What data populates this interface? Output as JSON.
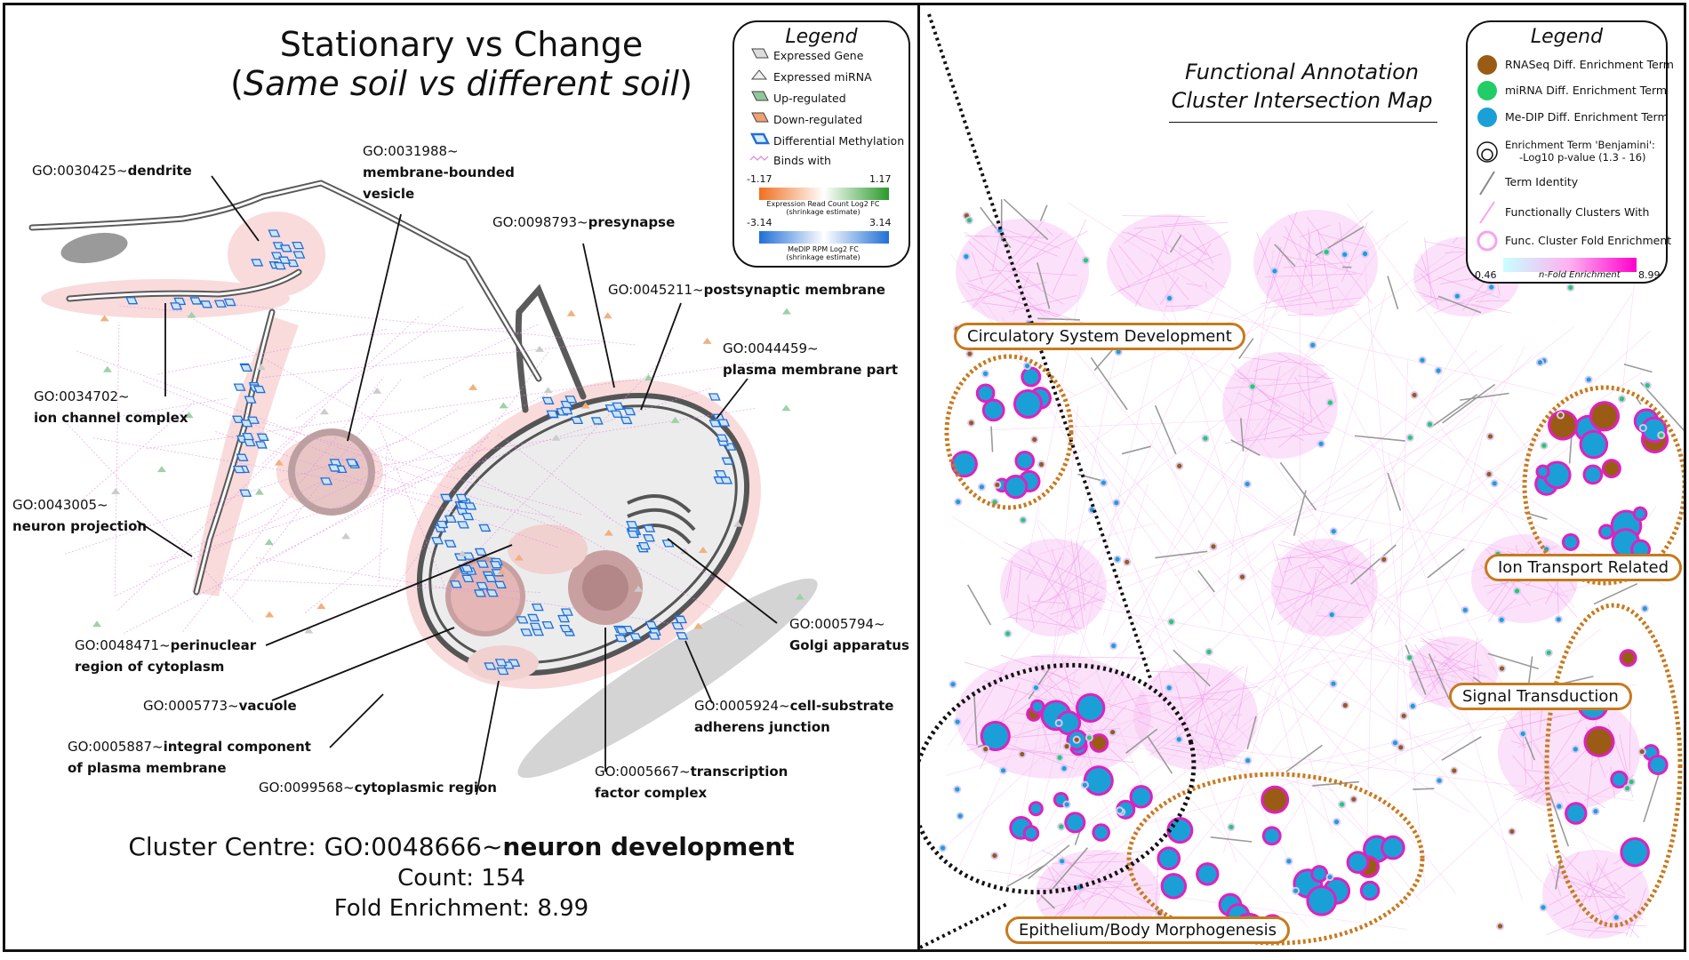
{
  "left": {
    "title_line1": "Stationary vs Change",
    "title_paren_open": "(",
    "title_line2_italic": "Same soil vs different soil",
    "title_paren_close": ")",
    "legend": {
      "title": "Legend",
      "items": [
        "Expressed Gene",
        "Expressed miRNA",
        "Up-regulated",
        "Down-regulated",
        "Differential Methylation",
        "Binds with"
      ],
      "scale1": {
        "min": "-1.17",
        "max": "1.17",
        "caption1": "Expression Read Count Log2 FC",
        "caption2": "(shrinkage estimate)",
        "colors": [
          "#f07020",
          "#ffffff",
          "#2a9a2a"
        ]
      },
      "scale2": {
        "min": "-3.14",
        "max": "3.14",
        "caption1": "MeDIP RPM Log2 FC",
        "caption2": "(shrinkage estimate)",
        "colors": [
          "#1f6fd6",
          "#ffffff",
          "#1f6fd6"
        ]
      }
    },
    "go_labels": [
      {
        "id": "GO:0030425~",
        "name": "dendrite"
      },
      {
        "id": "GO:0031988~",
        "name": "membrane-bounded",
        "name2": "vesicle"
      },
      {
        "id": "GO:0098793~",
        "name": "presynapse"
      },
      {
        "id": "GO:0045211~",
        "name": "postsynaptic membrane"
      },
      {
        "id": "GO:0044459~",
        "name": "plasma membrane part"
      },
      {
        "id": "GO:0034702~",
        "name": "ion channel complex"
      },
      {
        "id": "GO:0043005~",
        "name": "neuron projection"
      },
      {
        "id": "GO:0048471~",
        "name": "perinuclear",
        "name2": "region of cytoplasm"
      },
      {
        "id": "GO:0005773~",
        "name": "vacuole"
      },
      {
        "id": "GO:0005887~",
        "name": "integral component",
        "name2": "of plasma membrane"
      },
      {
        "id": "GO:0099568~",
        "name": "cytoplasmic region"
      },
      {
        "id": "GO:0005667~",
        "name": "transcription",
        "name2": "factor complex"
      },
      {
        "id": "GO:0005924~",
        "name": "cell-substrate",
        "name2": "adherens junction"
      },
      {
        "id": "GO:0005794~",
        "name": "Golgi apparatus"
      }
    ],
    "cluster_centre_prefix": "Cluster Centre: GO:0048666~",
    "cluster_centre_name": "neuron development",
    "count_line": "Count: 154",
    "fold_line": "Fold Enrichment: 8.99"
  },
  "right": {
    "title_line1": "Functional Annotation",
    "title_line2": "Cluster Intersection Map",
    "legend": {
      "title": "Legend",
      "items": [
        {
          "label": "RNASeq Diff. Enrichment Term",
          "color": "#9a5b14",
          "icon": "circle"
        },
        {
          "label": "miRNA Diff. Enrichment Term",
          "color": "#22cc66",
          "icon": "circle"
        },
        {
          "label": "Me-DIP Diff. Enrichment Term",
          "color": "#1aa0d6",
          "icon": "circle"
        },
        {
          "label": "Enrichment Term 'Benjamini':",
          "label2": "-Log10 p-value (1.3 - 16)",
          "icon": "nested-circle"
        },
        {
          "label": "Term Identity",
          "icon": "grey-line"
        },
        {
          "label": "Functionally Clusters With",
          "icon": "pink-line"
        },
        {
          "label": "Func. Cluster Fold Enrichment",
          "icon": "pink-ring"
        }
      ],
      "scale": {
        "min": "0.46",
        "max": "8.99",
        "caption": "n-Fold Enrichment",
        "colors": [
          "#c8ffff",
          "#ff00cc"
        ]
      }
    },
    "clusters": [
      "Circulatory System Development",
      "Ion Transport Related",
      "Signal Transduction",
      "Epithelium/Body Morphogenesis"
    ],
    "colors": {
      "pink": "#f5a3f0",
      "magenta": "#e020c0",
      "blue": "#1aa0d6",
      "brown": "#9a5b14",
      "orange": "#c77a1e"
    }
  }
}
